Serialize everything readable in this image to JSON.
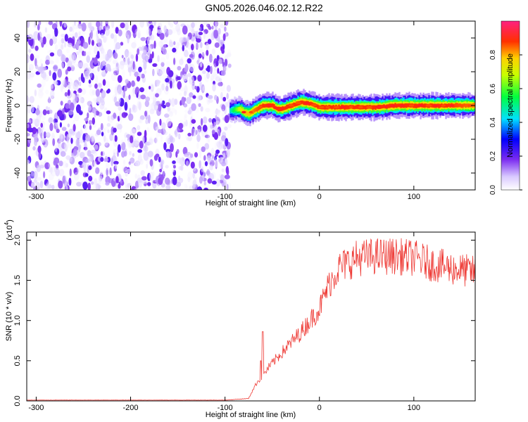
{
  "title": "GN05.2026.046.02.12.R22",
  "colors": {
    "spectral_low": "#7b2cf0",
    "spectral_high": "#ff0000",
    "snr_line": "#ee3a35",
    "axis": "#000000"
  },
  "colorbar": {
    "label": "Normalized spectral amplitude",
    "ticks": [
      "0.0",
      "0.2",
      "0.4",
      "0.6",
      "0.8"
    ]
  },
  "chart_data": [
    {
      "type": "heatmap",
      "name": "spectrogram",
      "xlabel": "Height of straight line (km)",
      "ylabel": "Frequency (Hz)",
      "xlim": [
        -310,
        165
      ],
      "ylim": [
        -50,
        50
      ],
      "xticks": [
        "-300",
        "-200",
        "-100",
        "0",
        "100"
      ],
      "yticks": [
        "40",
        "20",
        "0",
        "-20",
        "-40"
      ],
      "zlim": [
        0,
        1
      ],
      "noise_region_x": [
        -310,
        -95
      ],
      "noise_amplitude_range": [
        0.0,
        0.2
      ],
      "signal_band": {
        "x": [
          -95,
          -85,
          -80,
          -75,
          -70,
          -60,
          -50,
          -45,
          -40,
          -30,
          -20,
          -10,
          0,
          20,
          40,
          60,
          80,
          100,
          130,
          165
        ],
        "freq": [
          -3,
          -2,
          -4,
          -5,
          -3,
          0,
          0,
          -2,
          -2,
          0,
          2,
          1,
          -1,
          -1,
          -1,
          -1,
          0,
          0,
          0,
          0
        ],
        "peak_amplitude": [
          0.5,
          0.75,
          0.85,
          0.85,
          0.9,
          0.95,
          0.95,
          0.95,
          0.95,
          0.95,
          0.95,
          0.95,
          0.95,
          0.95,
          0.95,
          0.95,
          0.95,
          0.95,
          0.95,
          0.9
        ],
        "half_width_hz": 3
      }
    },
    {
      "type": "line",
      "name": "snr",
      "xlabel": "Height of straight line (km)",
      "ylabel": "SNR (10 * v/v)",
      "multiplier_label": "(x10",
      "multiplier_exp": "4",
      "xlim": [
        -310,
        165
      ],
      "ylim": [
        0,
        2.1
      ],
      "xticks": [
        "-300",
        "-200",
        "-100",
        "0",
        "100"
      ],
      "yticks": [
        "0.0",
        "0.5",
        "1.0",
        "1.5",
        "2.0"
      ],
      "envelope": {
        "x": [
          -310,
          -100,
          -75,
          -70,
          -65,
          -60,
          -55,
          -40,
          -20,
          0,
          10,
          20,
          40,
          60,
          80,
          100,
          120,
          140,
          165
        ],
        "y": [
          0.01,
          0.01,
          0.03,
          0.15,
          0.25,
          0.3,
          0.4,
          0.6,
          0.85,
          1.15,
          1.45,
          1.65,
          1.78,
          1.8,
          1.8,
          1.78,
          1.7,
          1.65,
          1.6
        ],
        "noise_fraction": 0.13
      },
      "spikes": [
        {
          "x": -60,
          "y": 0.86
        },
        {
          "x": -62,
          "y": 0.5
        }
      ]
    }
  ]
}
